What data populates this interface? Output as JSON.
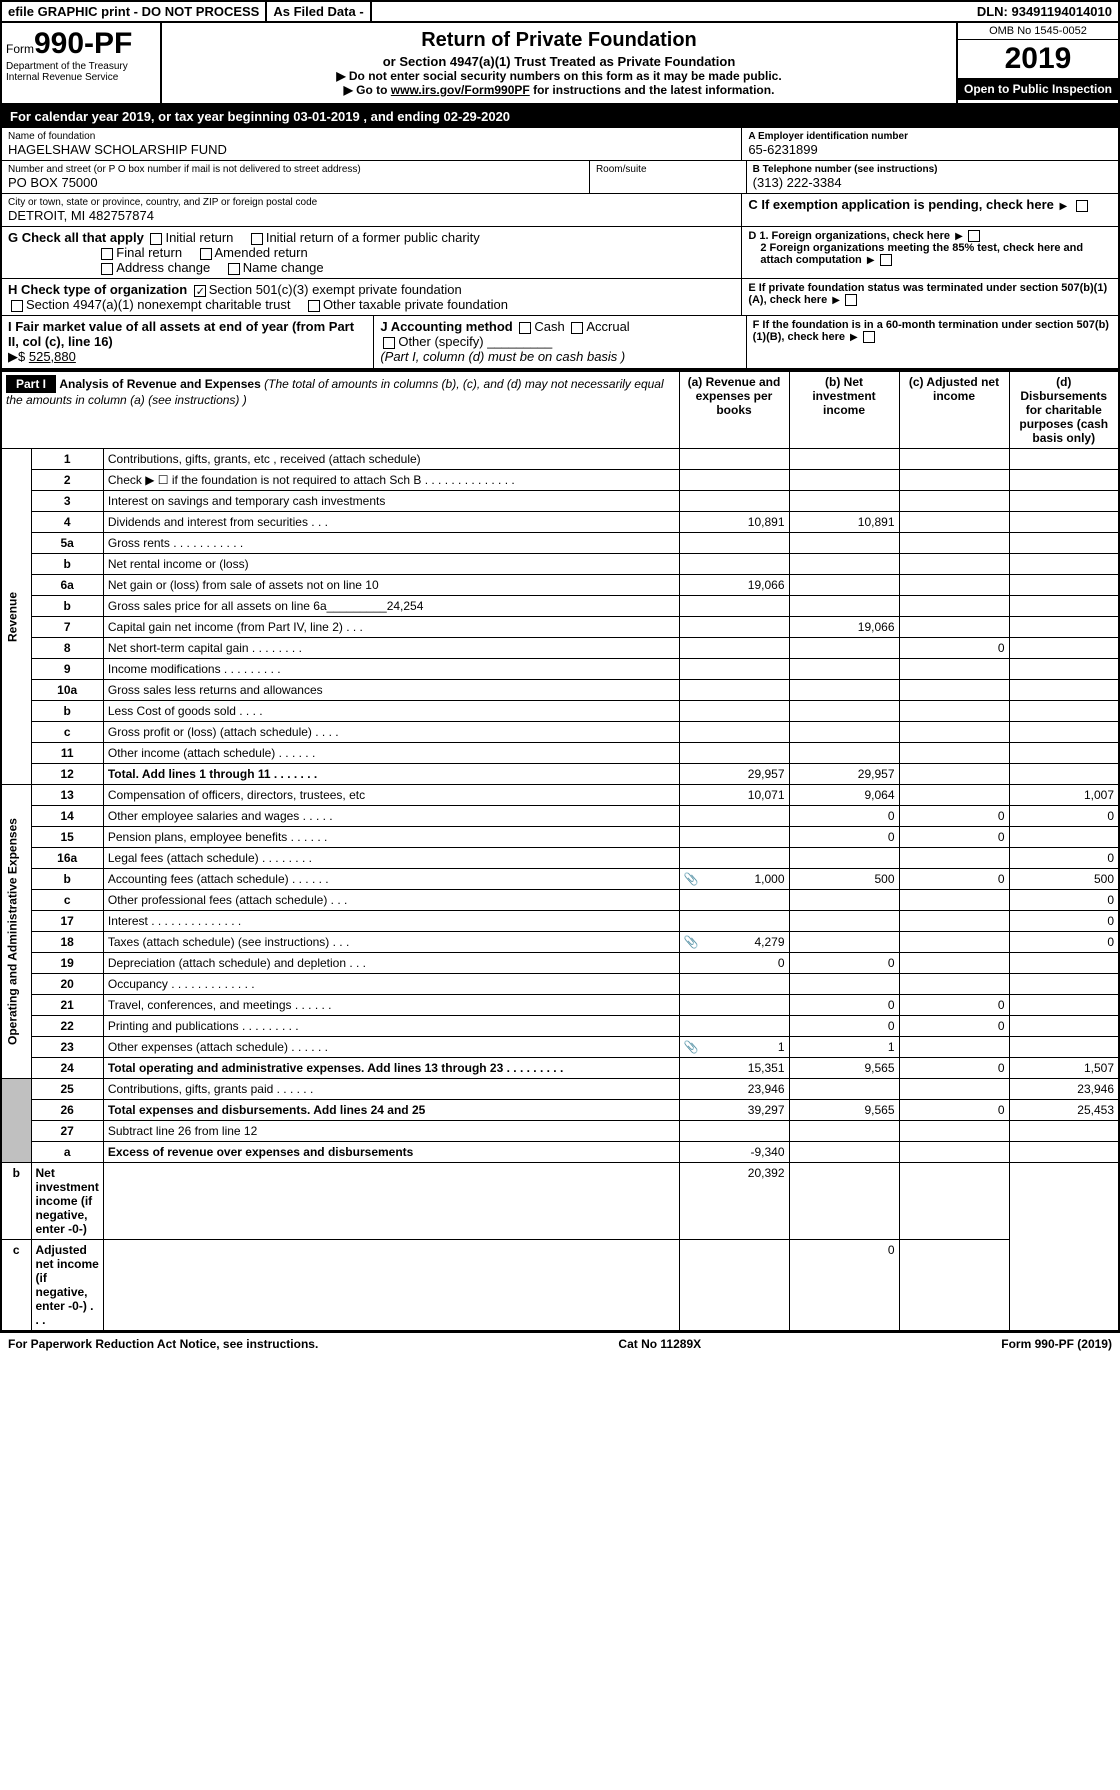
{
  "topbar": {
    "efile": "efile GRAPHIC print - DO NOT PROCESS",
    "asfiled": "As Filed Data -",
    "dln_label": "DLN:",
    "dln": "93491194014010"
  },
  "header": {
    "form_prefix": "Form",
    "form_number": "990-PF",
    "dept": "Department of the Treasury",
    "irs": "Internal Revenue Service",
    "title": "Return of Private Foundation",
    "subtitle": "or Section 4947(a)(1) Trust Treated as Private Foundation",
    "warn1": "▶ Do not enter social security numbers on this form as it may be made public.",
    "warn2_prefix": "▶ Go to ",
    "warn2_link": "www.irs.gov/Form990PF",
    "warn2_suffix": " for instructions and the latest information.",
    "omb": "OMB No 1545-0052",
    "year": "2019",
    "open": "Open to Public Inspection"
  },
  "calyear": {
    "prefix": "For calendar year 2019, or tax year beginning ",
    "begin": "03-01-2019",
    "mid": " , and ending ",
    "end": "02-29-2020"
  },
  "id": {
    "name_label": "Name of foundation",
    "name": "HAGELSHAW SCHOLARSHIP FUND",
    "a_label": "A Employer identification number",
    "ein": "65-6231899",
    "addr_label": "Number and street (or P O  box number if mail is not delivered to street address)",
    "addr": "PO BOX 75000",
    "room_label": "Room/suite",
    "b_label": "B Telephone number (see instructions)",
    "phone": "(313) 222-3384",
    "city_label": "City or town, state or province, country, and ZIP or foreign postal code",
    "city": "DETROIT, MI  482757874",
    "c_label": "C If exemption application is pending, check here"
  },
  "g": {
    "label": "G Check all that apply",
    "o1": "Initial return",
    "o2": "Initial return of a former public charity",
    "o3": "Final return",
    "o4": "Amended return",
    "o5": "Address change",
    "o6": "Name change"
  },
  "d": {
    "d1": "D 1. Foreign organizations, check here",
    "d2": "2 Foreign organizations meeting the 85% test, check here and attach computation",
    "e": "E  If private foundation status was terminated under section 507(b)(1)(A), check here",
    "f": "F  If the foundation is in a 60-month termination under section 507(b)(1)(B), check here"
  },
  "h": {
    "label": "H Check type of organization",
    "o1": "Section 501(c)(3) exempt private foundation",
    "o2": "Section 4947(a)(1) nonexempt charitable trust",
    "o3": "Other taxable private foundation"
  },
  "i": {
    "label": "I Fair market value of all assets at end of year (from Part II, col  (c), line 16) ",
    "arrow": "▶$",
    "value": "525,880"
  },
  "j": {
    "label": "J Accounting method",
    "o1": "Cash",
    "o2": "Accrual",
    "o3": "Other (specify)",
    "note": "(Part I, column (d) must be on cash basis )"
  },
  "part1": {
    "tag": "Part I",
    "headdesc": "Analysis of Revenue and Expenses",
    "headnote": " (The total of amounts in columns (b), (c), and (d) may not necessarily equal the amounts in column (a) (see instructions) )",
    "col_a": "(a) Revenue and expenses per books",
    "col_b": "(b) Net investment income",
    "col_c": "(c) Adjusted net income",
    "col_d": "(d) Disbursements for charitable purposes (cash basis only)",
    "revenue_label": "Revenue",
    "expenses_label": "Operating and Administrative Expenses",
    "rows": [
      {
        "n": "1",
        "d": "Contributions, gifts, grants, etc , received (attach schedule)",
        "a": "",
        "b": "",
        "c": "",
        "dd": ""
      },
      {
        "n": "2",
        "d": "Check ▶ ☐ if the foundation is not required to attach Sch  B   .  .  .  .  .  .  .  .  .  .  .  .  .  .",
        "a": "",
        "b": "",
        "c": "",
        "dd": ""
      },
      {
        "n": "3",
        "d": "Interest on savings and temporary cash investments",
        "a": "",
        "b": "",
        "c": "",
        "dd": ""
      },
      {
        "n": "4",
        "d": "Dividends and interest from securities   .  .  .",
        "a": "10,891",
        "b": "10,891",
        "c": "",
        "dd": ""
      },
      {
        "n": "5a",
        "d": "Gross rents   .  .  .  .  .  .  .  .  .  .  .",
        "a": "",
        "b": "",
        "c": "",
        "dd": ""
      },
      {
        "n": "b",
        "d": "Net rental income or (loss)  ",
        "a": "",
        "b": "",
        "c": "",
        "dd": ""
      },
      {
        "n": "6a",
        "d": "Net gain or (loss) from sale of assets not on line 10",
        "a": "19,066",
        "b": "",
        "c": "",
        "dd": ""
      },
      {
        "n": "b",
        "d": "Gross sales price for all assets on line 6a_________24,254",
        "a": "",
        "b": "",
        "c": "",
        "dd": ""
      },
      {
        "n": "7",
        "d": "Capital gain net income (from Part IV, line 2)   .  .  .",
        "a": "",
        "b": "19,066",
        "c": "",
        "dd": ""
      },
      {
        "n": "8",
        "d": "Net short-term capital gain   .  .  .  .  .  .  .  .",
        "a": "",
        "b": "",
        "c": "0",
        "dd": ""
      },
      {
        "n": "9",
        "d": "Income modifications   .  .  .  .  .  .  .  .  .",
        "a": "",
        "b": "",
        "c": "",
        "dd": ""
      },
      {
        "n": "10a",
        "d": "Gross sales less returns and allowances",
        "a": "",
        "b": "",
        "c": "",
        "dd": ""
      },
      {
        "n": "b",
        "d": "Less  Cost of goods sold   .  .  .  .",
        "a": "",
        "b": "",
        "c": "",
        "dd": ""
      },
      {
        "n": "c",
        "d": "Gross profit or (loss) (attach schedule)   .  .  .  .",
        "a": "",
        "b": "",
        "c": "",
        "dd": ""
      },
      {
        "n": "11",
        "d": "Other income (attach schedule)   .  .  .  .  .  .",
        "a": "",
        "b": "",
        "c": "",
        "dd": ""
      },
      {
        "n": "12",
        "d": "Total. Add lines 1 through 11   .  .  .  .  .  .  .",
        "a": "29,957",
        "b": "29,957",
        "c": "",
        "dd": "",
        "bold": true
      },
      {
        "n": "13",
        "d": "Compensation of officers, directors, trustees, etc ",
        "a": "10,071",
        "b": "9,064",
        "c": "",
        "dd": "1,007"
      },
      {
        "n": "14",
        "d": "Other employee salaries and wages   .  .  .  .  .",
        "a": "",
        "b": "0",
        "c": "0",
        "dd": "0"
      },
      {
        "n": "15",
        "d": "Pension plans, employee benefits   .  .  .  .  .  .",
        "a": "",
        "b": "0",
        "c": "0",
        "dd": ""
      },
      {
        "n": "16a",
        "d": "Legal fees (attach schedule)   .  .  .  .  .  .  .  .",
        "a": "",
        "b": "",
        "c": "",
        "dd": "0"
      },
      {
        "n": "b",
        "d": "Accounting fees (attach schedule)   .  .  .  .  .  .",
        "a": "1,000",
        "b": "500",
        "c": "0",
        "dd": "500",
        "icon": true
      },
      {
        "n": "c",
        "d": "Other professional fees (attach schedule)   .  .  .",
        "a": "",
        "b": "",
        "c": "",
        "dd": "0"
      },
      {
        "n": "17",
        "d": "Interest   .  .  .  .  .  .  .  .  .  .  .  .  .  .",
        "a": "",
        "b": "",
        "c": "",
        "dd": "0"
      },
      {
        "n": "18",
        "d": "Taxes (attach schedule) (see instructions)   .  .  .",
        "a": "4,279",
        "b": "",
        "c": "",
        "dd": "0",
        "icon": true
      },
      {
        "n": "19",
        "d": "Depreciation (attach schedule) and depletion   .  .  .",
        "a": "0",
        "b": "0",
        "c": "",
        "dd": ""
      },
      {
        "n": "20",
        "d": "Occupancy   .  .  .  .  .  .  .  .  .  .  .  .  .",
        "a": "",
        "b": "",
        "c": "",
        "dd": ""
      },
      {
        "n": "21",
        "d": "Travel, conferences, and meetings   .  .  .  .  .  .",
        "a": "",
        "b": "0",
        "c": "0",
        "dd": ""
      },
      {
        "n": "22",
        "d": "Printing and publications   .  .  .  .  .  .  .  .  .",
        "a": "",
        "b": "0",
        "c": "0",
        "dd": ""
      },
      {
        "n": "23",
        "d": "Other expenses (attach schedule)   .  .  .  .  .  .",
        "a": "1",
        "b": "1",
        "c": "",
        "dd": "",
        "icon": true
      },
      {
        "n": "24",
        "d": "Total operating and administrative expenses. Add lines 13 through 23   .  .  .  .  .  .  .  .  .",
        "a": "15,351",
        "b": "9,565",
        "c": "0",
        "dd": "1,507",
        "bold": true
      },
      {
        "n": "25",
        "d": "Contributions, gifts, grants paid   .  .  .  .  .  .",
        "a": "23,946",
        "b": "",
        "c": "",
        "dd": "23,946"
      },
      {
        "n": "26",
        "d": "Total expenses and disbursements. Add lines 24 and 25",
        "a": "39,297",
        "b": "9,565",
        "c": "0",
        "dd": "25,453",
        "bold": true
      },
      {
        "n": "27",
        "d": "Subtract line 26 from line 12",
        "a": "",
        "b": "",
        "c": "",
        "dd": ""
      },
      {
        "n": "a",
        "d": "Excess of revenue over expenses and disbursements",
        "a": "-9,340",
        "b": "",
        "c": "",
        "dd": "",
        "bold": true
      },
      {
        "n": "b",
        "d": "Net investment income (if negative, enter -0-)",
        "a": "",
        "b": "20,392",
        "c": "",
        "dd": "",
        "bold": true
      },
      {
        "n": "c",
        "d": "Adjusted net income (if negative, enter -0-)   .  .  .",
        "a": "",
        "b": "",
        "c": "0",
        "dd": "",
        "bold": true
      }
    ]
  },
  "footer": {
    "left": "For Paperwork Reduction Act Notice, see instructions.",
    "mid": "Cat  No  11289X",
    "right": "Form 990-PF (2019)"
  }
}
